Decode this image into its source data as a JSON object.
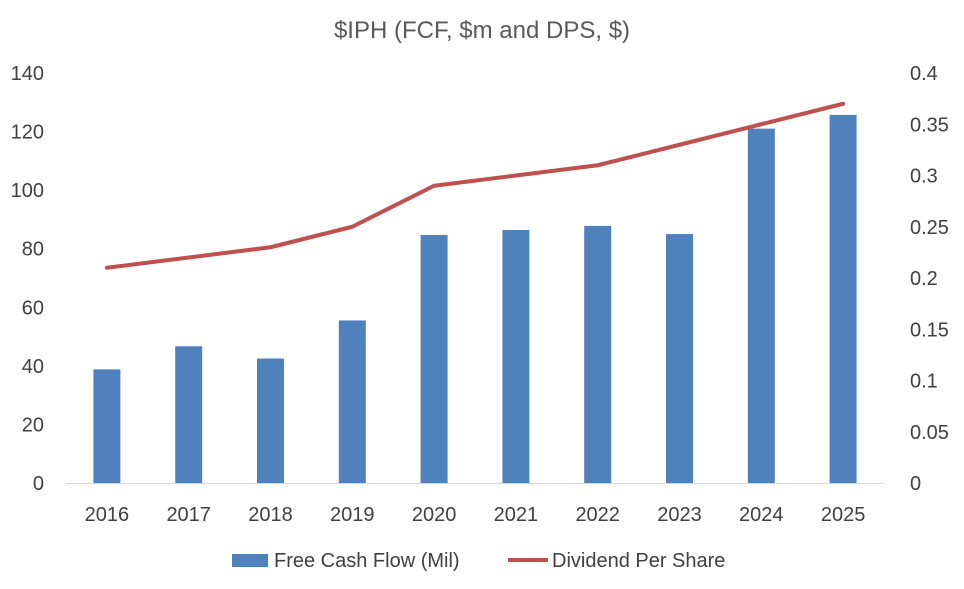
{
  "chart_data": {
    "type": "bar",
    "title": "$IPH (FCF, $m and DPS, $)",
    "categories": [
      "2016",
      "2017",
      "2018",
      "2019",
      "2020",
      "2021",
      "2022",
      "2023",
      "2024",
      "2025"
    ],
    "series": [
      {
        "name": "Free Cash Flow (Mil)",
        "type": "bar",
        "axis": "left",
        "color": "#4F81BD",
        "values": [
          38.8,
          46.7,
          42.5,
          55.5,
          84.7,
          86.4,
          87.8,
          85.0,
          121.0,
          125.7
        ]
      },
      {
        "name": "Dividend Per Share",
        "type": "line",
        "axis": "right",
        "color": "#C0504D",
        "values": [
          0.21,
          0.22,
          0.23,
          0.25,
          0.29,
          0.3,
          0.31,
          0.33,
          0.35,
          0.37
        ]
      }
    ],
    "y_left": {
      "min": 0,
      "max": 140,
      "ticks": [
        "0",
        "20",
        "40",
        "60",
        "80",
        "100",
        "120",
        "140"
      ]
    },
    "y_right": {
      "min": 0,
      "max": 0.4,
      "ticks": [
        "0",
        "0.05",
        "0.1",
        "0.15",
        "0.2",
        "0.25",
        "0.3",
        "0.35",
        "0.4"
      ]
    },
    "grid": false,
    "legend": "bottom"
  }
}
